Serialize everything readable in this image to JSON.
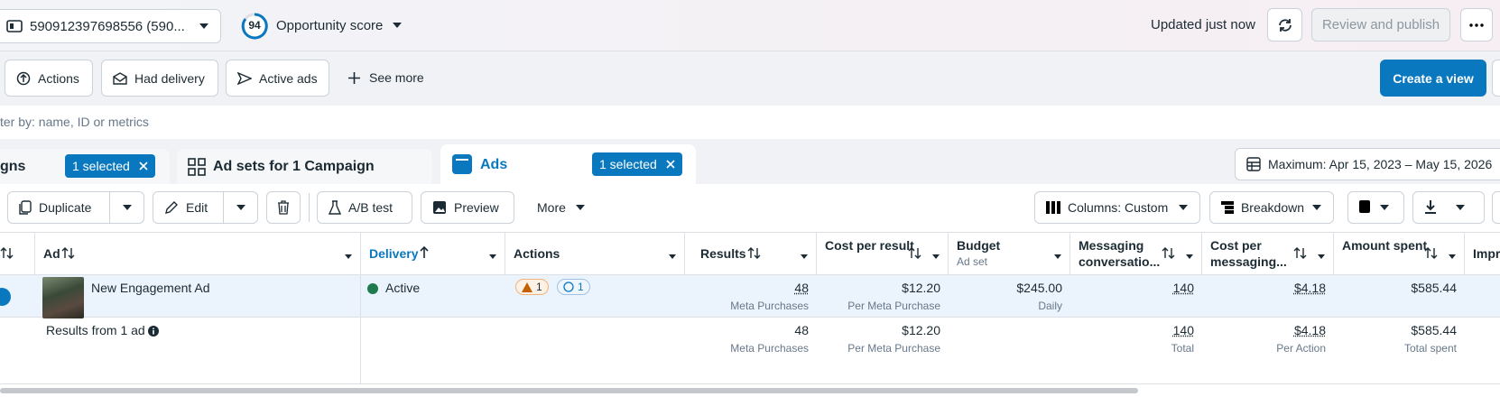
{
  "header": {
    "account": "590912397698556 (590...",
    "score": "94",
    "score_label": "Opportunity score",
    "updated": "Updated just now",
    "review": "Review and publish"
  },
  "filters": {
    "chips": [
      "Actions",
      "Had delivery",
      "Active ads"
    ],
    "see_more": "See more",
    "create_view": "Create a view"
  },
  "search": {
    "placeholder": "ter by: name, ID or metrics"
  },
  "tabs": [
    {
      "label": "gns",
      "selected": "1 selected"
    },
    {
      "label": "Ad sets for 1 Campaign"
    },
    {
      "label": "Ads",
      "selected": "1 selected"
    }
  ],
  "date_range": "Maximum: Apr 15, 2023 – May 15, 2026",
  "toolbar": {
    "duplicate": "Duplicate",
    "edit": "Edit",
    "ab_test": "A/B test",
    "preview": "Preview",
    "more": "More",
    "columns": "Columns: Custom",
    "breakdown": "Breakdown"
  },
  "table": {
    "headers": [
      "Ad",
      "Delivery",
      "Actions",
      "Results",
      "Cost per result",
      "Budget",
      "Messaging conversatio...",
      "Cost per messaging...",
      "Amount spent",
      "Impr"
    ],
    "budget_sub": "Ad set",
    "row": {
      "name": "New Engagement Ad",
      "delivery": "Active",
      "warnings": "1",
      "actions_count": "1",
      "results": {
        "value": "48",
        "sub": "Meta Purchases"
      },
      "cost_per_result": {
        "value": "$12.20",
        "sub": "Per Meta Purchase"
      },
      "budget": {
        "value": "$245.00",
        "sub": "Daily"
      },
      "messaging": {
        "value": "140"
      },
      "cost_per_messaging": {
        "value": "$4.18"
      },
      "amount_spent": {
        "value": "$585.44"
      }
    },
    "summary": {
      "label": "Results from 1 ad",
      "results": {
        "value": "48",
        "sub": "Meta Purchases"
      },
      "cost_per_result": {
        "value": "$12.20",
        "sub": "Per Meta Purchase"
      },
      "messaging": {
        "value": "140",
        "sub": "Total"
      },
      "cost_per_messaging": {
        "value": "$4.18",
        "sub": "Per Action"
      },
      "amount_spent": {
        "value": "$585.44",
        "sub": "Total spent"
      }
    }
  }
}
